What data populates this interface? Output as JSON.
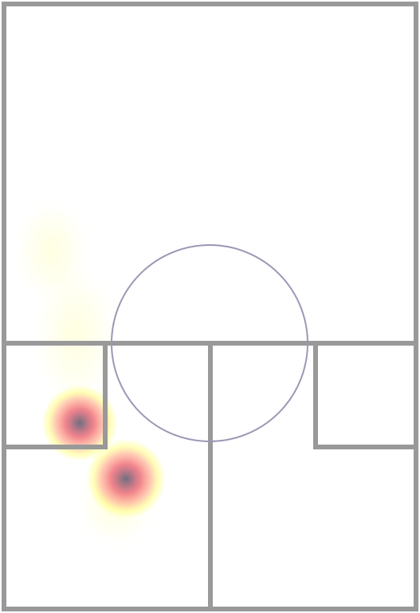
{
  "colors": {
    "background": "#ffffff",
    "court_lines": "#999999",
    "center_circle": "#9a98b4",
    "heat_low": "#ffff66",
    "heat_mid": "#f58a7a",
    "heat_high": "#707080"
  },
  "heatmap": {
    "hotspots": [
      {
        "intensity": 0.92
      },
      {
        "intensity": 1.0
      },
      {
        "intensity": 0.3
      },
      {
        "intensity": 0.3
      },
      {
        "intensity": 0.28
      }
    ]
  }
}
